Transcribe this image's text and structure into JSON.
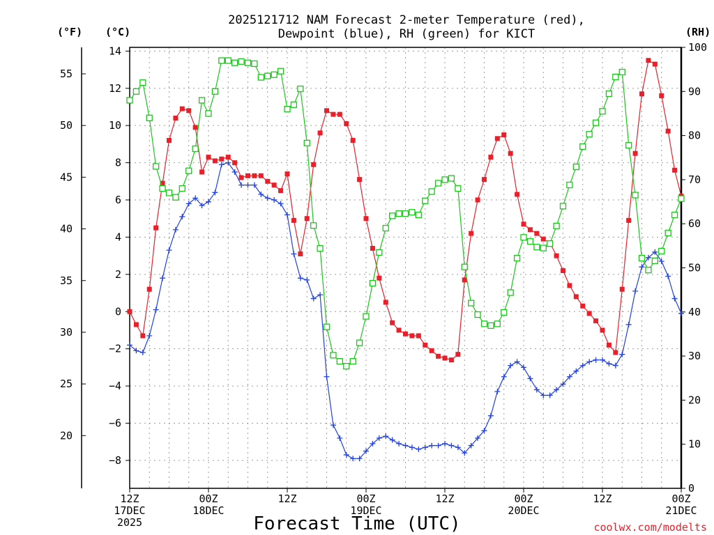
{
  "chart_data": {
    "type": "line",
    "title_line1": "2025121712 NAM Forecast 2-meter Temperature (red),",
    "title_line2": "Dewpoint (blue), RH (green) for KICT",
    "units": {
      "fahrenheit": "(°F)",
      "celsius": "(°C)",
      "rh": "(RH)"
    },
    "xlabel": "Forecast Time (UTC)",
    "credit": "coolwx.com/modelts",
    "x_hours_range": [
      0,
      84
    ],
    "x_ticks": [
      {
        "hour": 0,
        "lines": [
          "12Z",
          "17DEC",
          "2025"
        ]
      },
      {
        "hour": 12,
        "lines": [
          "00Z",
          "18DEC"
        ]
      },
      {
        "hour": 24,
        "lines": [
          "12Z"
        ]
      },
      {
        "hour": 36,
        "lines": [
          "00Z",
          "19DEC"
        ]
      },
      {
        "hour": 48,
        "lines": [
          "12Z"
        ]
      },
      {
        "hour": 60,
        "lines": [
          "00Z",
          "20DEC"
        ]
      },
      {
        "hour": 72,
        "lines": [
          "12Z"
        ]
      },
      {
        "hour": 84,
        "lines": [
          "00Z",
          "21DEC"
        ]
      }
    ],
    "celsius_axis": {
      "range": [
        -9.5,
        14.2
      ],
      "ticks": [
        "14",
        "12",
        "10",
        "8",
        "6",
        "4",
        "2",
        "0",
        "−2",
        "−4",
        "−6",
        "−8"
      ],
      "tick_values": [
        14,
        12,
        10,
        8,
        6,
        4,
        2,
        0,
        -2,
        -4,
        -6,
        -8
      ]
    },
    "fahrenheit_axis": {
      "ticks": [
        "55",
        "50",
        "45",
        "40",
        "35",
        "30",
        "25",
        "20"
      ],
      "tick_values": [
        55,
        50,
        45,
        40,
        35,
        30,
        25,
        20
      ]
    },
    "rh_axis": {
      "range": [
        0,
        100
      ],
      "ticks": [
        "100",
        "90",
        "80",
        "70",
        "60",
        "50",
        "40",
        "30",
        "20",
        "10",
        "0"
      ],
      "tick_values": [
        100,
        90,
        80,
        70,
        60,
        50,
        40,
        30,
        20,
        10,
        0
      ]
    },
    "series": [
      {
        "name": "2-meter Temperature",
        "unit": "C",
        "color": "#e8202a",
        "marker": "square",
        "x": [
          0,
          1,
          2,
          3,
          4,
          5,
          6,
          7,
          8,
          9,
          10,
          11,
          12,
          13,
          14,
          15,
          16,
          17,
          18,
          19,
          20,
          21,
          22,
          23,
          24,
          25,
          26,
          27,
          28,
          29,
          30,
          31,
          32,
          33,
          34,
          35,
          36,
          37,
          38,
          39,
          40,
          41,
          42,
          43,
          44,
          45,
          46,
          47,
          48,
          49,
          50,
          51,
          52,
          53,
          54,
          55,
          56,
          57,
          58,
          59,
          60,
          61,
          62,
          63,
          64,
          65,
          66,
          67,
          68,
          69,
          70,
          71,
          72,
          73,
          74,
          75,
          76,
          77,
          78,
          79,
          80,
          81,
          82,
          83,
          84
        ],
        "y": [
          0.0,
          -0.7,
          -1.3,
          1.2,
          4.5,
          6.9,
          9.2,
          10.4,
          10.9,
          10.8,
          9.9,
          7.5,
          8.3,
          8.1,
          8.2,
          8.3,
          8.0,
          7.2,
          7.3,
          7.3,
          7.3,
          7.0,
          6.8,
          6.5,
          7.4,
          4.9,
          3.1,
          5.0,
          7.9,
          9.6,
          10.8,
          10.6,
          10.6,
          10.1,
          9.2,
          7.1,
          5.0,
          3.4,
          1.8,
          0.5,
          -0.6,
          -1.0,
          -1.2,
          -1.3,
          -1.3,
          -1.8,
          -2.1,
          -2.4,
          -2.5,
          -2.6,
          -2.3,
          1.7,
          4.2,
          6.0,
          7.1,
          8.3,
          9.3,
          9.5,
          8.5,
          6.3,
          4.7,
          4.4,
          4.2,
          3.9,
          3.7,
          3.0,
          2.2,
          1.4,
          0.8,
          0.3,
          -0.1,
          -0.5,
          -1.0,
          -1.8,
          -2.2,
          1.2,
          4.9,
          8.5,
          11.7,
          13.5,
          13.3,
          11.6,
          9.7,
          7.6,
          6.2
        ]
      },
      {
        "name": "Dewpoint",
        "unit": "C",
        "color": "#2040e0",
        "marker": "plus",
        "x": [
          0,
          1,
          2,
          3,
          4,
          5,
          6,
          7,
          8,
          9,
          10,
          11,
          12,
          13,
          14,
          15,
          16,
          17,
          18,
          19,
          20,
          21,
          22,
          23,
          24,
          25,
          26,
          27,
          28,
          29,
          30,
          31,
          32,
          33,
          34,
          35,
          36,
          37,
          38,
          39,
          40,
          41,
          42,
          43,
          44,
          45,
          46,
          47,
          48,
          49,
          50,
          51,
          52,
          53,
          54,
          55,
          56,
          57,
          58,
          59,
          60,
          61,
          62,
          63,
          64,
          65,
          66,
          67,
          68,
          69,
          70,
          71,
          72,
          73,
          74,
          75,
          76,
          77,
          78,
          79,
          80,
          81,
          82,
          83,
          84
        ],
        "y": [
          -1.8,
          -2.1,
          -2.2,
          -1.3,
          0.1,
          1.8,
          3.3,
          4.4,
          5.1,
          5.8,
          6.1,
          5.7,
          5.9,
          6.4,
          7.9,
          8.0,
          7.5,
          6.8,
          6.8,
          6.8,
          6.3,
          6.1,
          6.0,
          5.8,
          5.2,
          3.1,
          1.8,
          1.7,
          0.7,
          0.9,
          -3.5,
          -6.1,
          -6.8,
          -7.7,
          -7.9,
          -7.9,
          -7.5,
          -7.1,
          -6.8,
          -6.7,
          -6.9,
          -7.1,
          -7.2,
          -7.3,
          -7.4,
          -7.3,
          -7.2,
          -7.2,
          -7.1,
          -7.2,
          -7.3,
          -7.6,
          -7.2,
          -6.8,
          -6.4,
          -5.6,
          -4.3,
          -3.5,
          -2.9,
          -2.7,
          -3.0,
          -3.6,
          -4.2,
          -4.5,
          -4.5,
          -4.2,
          -3.9,
          -3.5,
          -3.2,
          -2.9,
          -2.7,
          -2.6,
          -2.6,
          -2.8,
          -2.9,
          -2.3,
          -0.7,
          1.1,
          2.4,
          2.9,
          3.2,
          2.7,
          1.9,
          0.7,
          -0.1
        ]
      },
      {
        "name": "RH",
        "unit": "%",
        "color": "#18c818",
        "marker": "open-square",
        "x": [
          0,
          1,
          2,
          3,
          4,
          5,
          6,
          7,
          8,
          9,
          10,
          11,
          12,
          13,
          14,
          15,
          16,
          17,
          18,
          19,
          20,
          21,
          22,
          23,
          24,
          25,
          26,
          27,
          28,
          29,
          30,
          31,
          32,
          33,
          34,
          35,
          36,
          37,
          38,
          39,
          40,
          41,
          42,
          43,
          44,
          45,
          46,
          47,
          48,
          49,
          50,
          51,
          52,
          53,
          54,
          55,
          56,
          57,
          58,
          59,
          60,
          61,
          62,
          63,
          64,
          65,
          66,
          67,
          68,
          69,
          70,
          71,
          72,
          73,
          74,
          75,
          76,
          77,
          78,
          79,
          80,
          81,
          82,
          83,
          84
        ],
        "y": [
          88,
          90,
          92,
          84,
          73,
          68,
          67,
          66,
          68,
          72,
          77,
          88,
          85,
          90,
          97,
          97,
          96.5,
          96.8,
          96.5,
          96.3,
          93.2,
          93.5,
          93.8,
          94.6,
          86,
          87,
          90.6,
          78.3,
          59.6,
          54.4,
          36.6,
          30.2,
          28.8,
          27.7,
          28.8,
          33,
          39,
          46.5,
          53.5,
          59,
          61.8,
          62.3,
          62.3,
          62.6,
          62,
          65.2,
          67.3,
          69.2,
          70,
          70.3,
          68,
          50.2,
          42,
          39.4,
          37.3,
          36.9,
          37.3,
          39.9,
          44.4,
          52.2,
          56.9,
          56,
          54.7,
          54.5,
          55.5,
          59.5,
          64,
          68.8,
          72.9,
          77.5,
          80.3,
          82.9,
          85.5,
          89.5,
          93.3,
          94.4,
          77.8,
          66.5,
          52.2,
          49.5,
          51.6,
          53.8,
          57.9,
          62,
          65.7
        ]
      }
    ]
  }
}
